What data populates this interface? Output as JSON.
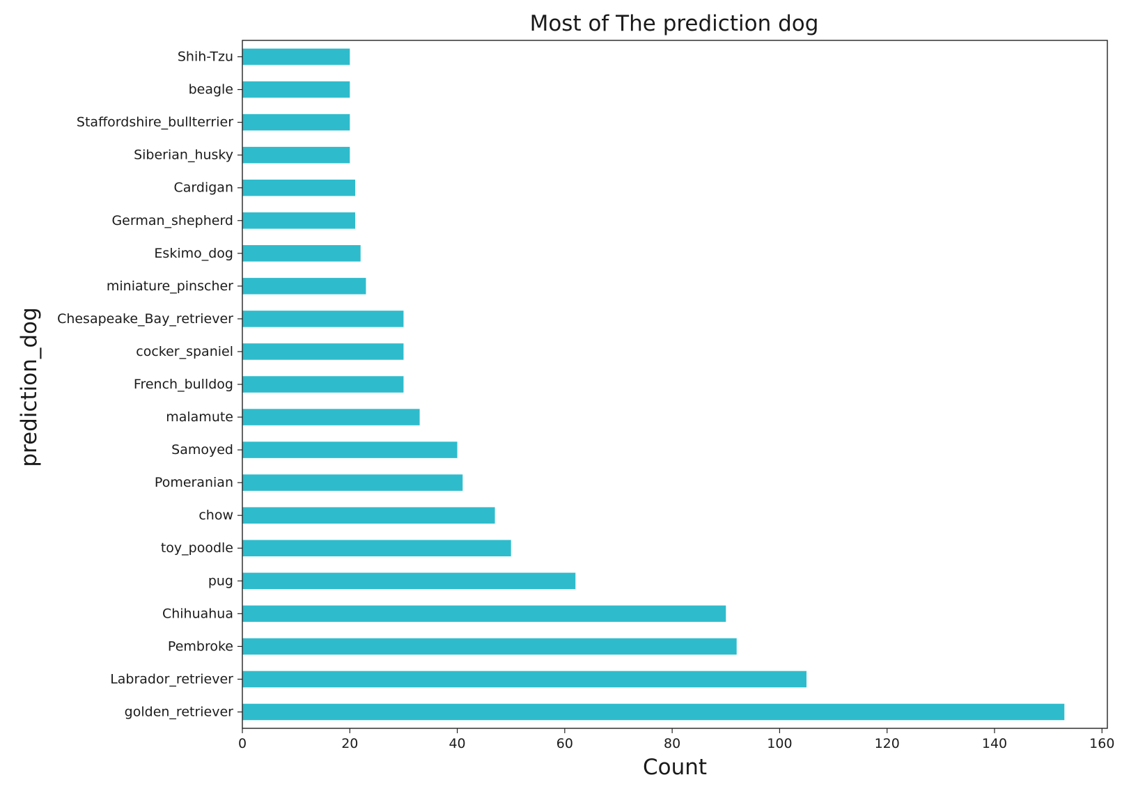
{
  "chart_data": {
    "type": "bar",
    "orientation": "horizontal",
    "title": "Most of The prediction dog",
    "xlabel": "Count",
    "ylabel": "prediction_dog",
    "categories": [
      "golden_retriever",
      "Labrador_retriever",
      "Pembroke",
      "Chihuahua",
      "pug",
      "toy_poodle",
      "chow",
      "Pomeranian",
      "Samoyed",
      "malamute",
      "French_bulldog",
      "cocker_spaniel",
      "Chesapeake_Bay_retriever",
      "miniature_pinscher",
      "Eskimo_dog",
      "German_shepherd",
      "Cardigan",
      "Siberian_husky",
      "Staffordshire_bullterrier",
      "beagle",
      "Shih-Tzu"
    ],
    "values": [
      153,
      105,
      92,
      90,
      62,
      50,
      47,
      41,
      40,
      33,
      30,
      30,
      30,
      23,
      22,
      21,
      21,
      20,
      20,
      20,
      20
    ],
    "xlim": [
      0,
      161
    ],
    "xticks": [
      0,
      20,
      40,
      60,
      80,
      100,
      120,
      140,
      160
    ],
    "xtick_labels": [
      "0",
      "20",
      "40",
      "60",
      "80",
      "100",
      "120",
      "140",
      "160"
    ],
    "grid": false,
    "bar_color": "#2ebccc"
  }
}
